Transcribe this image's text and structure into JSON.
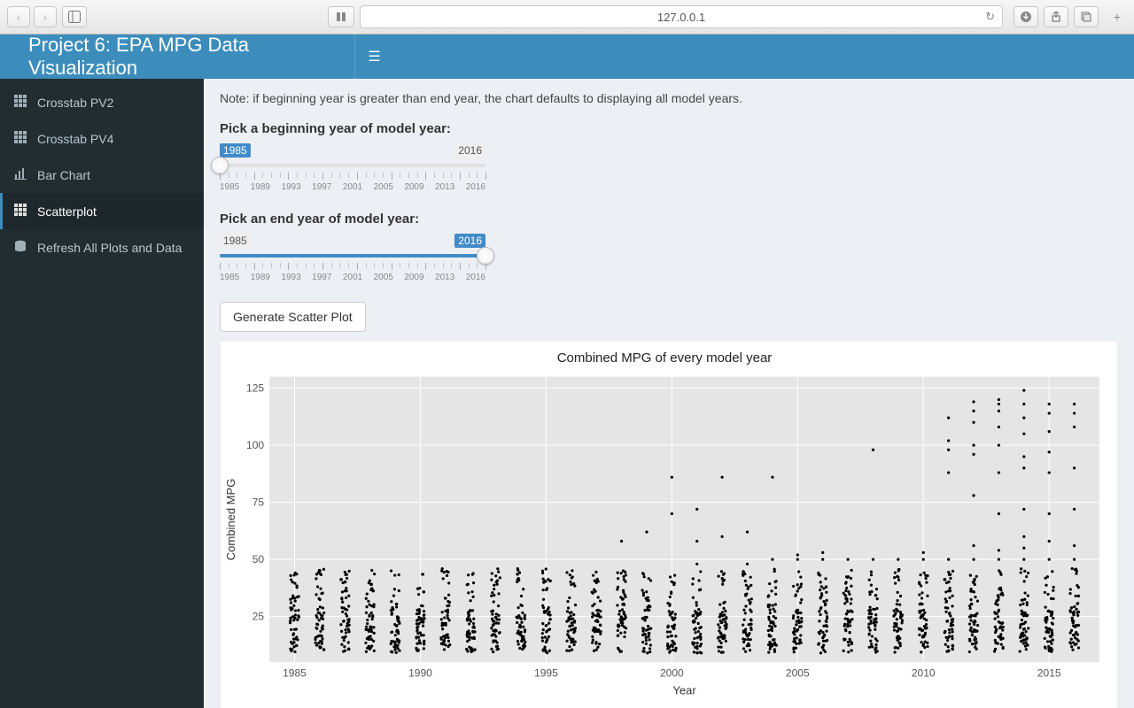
{
  "browser": {
    "url": "127.0.0.1"
  },
  "header": {
    "title": "Project 6: EPA MPG Data Visualization"
  },
  "sidebar": {
    "items": [
      {
        "label": "Crosstab PV2",
        "icon": "th"
      },
      {
        "label": "Crosstab PV4",
        "icon": "th"
      },
      {
        "label": "Bar Chart",
        "icon": "bar-chart"
      },
      {
        "label": "Scatterplot",
        "icon": "th",
        "active": true
      },
      {
        "label": "Refresh All Plots and Data",
        "icon": "database"
      }
    ]
  },
  "note": "Note: if beginning year is greater than end year, the chart defaults to displaying all model years.",
  "slider_begin": {
    "label": "Pick a beginning year of model year:",
    "min": 1985,
    "max": 2016,
    "value": 1985,
    "active_badge": "left",
    "tick_labels": [
      "1985",
      "1989",
      "1993",
      "1997",
      "2001",
      "2005",
      "2009",
      "2013",
      "2016"
    ]
  },
  "slider_end": {
    "label": "Pick an end year of model year:",
    "min": 1985,
    "max": 2016,
    "value": 2016,
    "active_badge": "right",
    "tick_labels": [
      "1985",
      "1989",
      "1993",
      "1997",
      "2001",
      "2005",
      "2009",
      "2013",
      "2016"
    ]
  },
  "generate_button": "Generate Scatter Plot",
  "chart": {
    "type": "scatter",
    "title": "Combined MPG of every model year",
    "xlabel": "Year",
    "ylabel": "Combined MPG",
    "xlim": [
      1984,
      2017
    ],
    "ylim": [
      5,
      130
    ],
    "x_ticks": [
      1985,
      1990,
      1995,
      2000,
      2005,
      2010,
      2015
    ],
    "y_ticks": [
      25,
      50,
      75,
      100,
      125
    ],
    "background_color": "#e5e5e5",
    "panel_line_color": "#ffffff",
    "point_color": "#000000",
    "point_radius": 1.6,
    "title_fontsize": 15,
    "label_fontsize": 13,
    "dense_columns": {
      "years": [
        1985,
        1986,
        1987,
        1988,
        1989,
        1990,
        1991,
        1992,
        1993,
        1994,
        1995,
        1996,
        1997,
        1998,
        1999,
        2000,
        2001,
        2002,
        2003,
        2004,
        2005,
        2006,
        2007,
        2008,
        2009,
        2010,
        2011,
        2012,
        2013,
        2014,
        2015,
        2016
      ],
      "y_min": 9,
      "y_max": 46,
      "count_per_year": 55
    },
    "outliers": [
      {
        "year": 1998,
        "mpg": 58
      },
      {
        "year": 1999,
        "mpg": 62
      },
      {
        "year": 2000,
        "mpg": 70
      },
      {
        "year": 2000,
        "mpg": 86
      },
      {
        "year": 2001,
        "mpg": 48
      },
      {
        "year": 2001,
        "mpg": 58
      },
      {
        "year": 2001,
        "mpg": 72
      },
      {
        "year": 2002,
        "mpg": 86
      },
      {
        "year": 2002,
        "mpg": 60
      },
      {
        "year": 2003,
        "mpg": 48
      },
      {
        "year": 2003,
        "mpg": 62
      },
      {
        "year": 2004,
        "mpg": 50
      },
      {
        "year": 2004,
        "mpg": 86
      },
      {
        "year": 2005,
        "mpg": 50
      },
      {
        "year": 2005,
        "mpg": 52
      },
      {
        "year": 2006,
        "mpg": 50
      },
      {
        "year": 2006,
        "mpg": 53
      },
      {
        "year": 2007,
        "mpg": 50
      },
      {
        "year": 2008,
        "mpg": 50
      },
      {
        "year": 2008,
        "mpg": 98
      },
      {
        "year": 2009,
        "mpg": 50
      },
      {
        "year": 2010,
        "mpg": 50
      },
      {
        "year": 2010,
        "mpg": 53
      },
      {
        "year": 2011,
        "mpg": 50
      },
      {
        "year": 2011,
        "mpg": 88
      },
      {
        "year": 2011,
        "mpg": 98
      },
      {
        "year": 2011,
        "mpg": 102
      },
      {
        "year": 2011,
        "mpg": 112
      },
      {
        "year": 2012,
        "mpg": 50
      },
      {
        "year": 2012,
        "mpg": 56
      },
      {
        "year": 2012,
        "mpg": 78
      },
      {
        "year": 2012,
        "mpg": 96
      },
      {
        "year": 2012,
        "mpg": 100
      },
      {
        "year": 2012,
        "mpg": 110
      },
      {
        "year": 2012,
        "mpg": 115
      },
      {
        "year": 2012,
        "mpg": 119
      },
      {
        "year": 2013,
        "mpg": 50
      },
      {
        "year": 2013,
        "mpg": 54
      },
      {
        "year": 2013,
        "mpg": 70
      },
      {
        "year": 2013,
        "mpg": 88
      },
      {
        "year": 2013,
        "mpg": 100
      },
      {
        "year": 2013,
        "mpg": 108
      },
      {
        "year": 2013,
        "mpg": 115
      },
      {
        "year": 2013,
        "mpg": 118
      },
      {
        "year": 2013,
        "mpg": 120
      },
      {
        "year": 2014,
        "mpg": 50
      },
      {
        "year": 2014,
        "mpg": 55
      },
      {
        "year": 2014,
        "mpg": 60
      },
      {
        "year": 2014,
        "mpg": 72
      },
      {
        "year": 2014,
        "mpg": 90
      },
      {
        "year": 2014,
        "mpg": 95
      },
      {
        "year": 2014,
        "mpg": 105
      },
      {
        "year": 2014,
        "mpg": 112
      },
      {
        "year": 2014,
        "mpg": 118
      },
      {
        "year": 2014,
        "mpg": 124
      },
      {
        "year": 2015,
        "mpg": 50
      },
      {
        "year": 2015,
        "mpg": 58
      },
      {
        "year": 2015,
        "mpg": 70
      },
      {
        "year": 2015,
        "mpg": 88
      },
      {
        "year": 2015,
        "mpg": 97
      },
      {
        "year": 2015,
        "mpg": 106
      },
      {
        "year": 2015,
        "mpg": 114
      },
      {
        "year": 2015,
        "mpg": 118
      },
      {
        "year": 2016,
        "mpg": 50
      },
      {
        "year": 2016,
        "mpg": 56
      },
      {
        "year": 2016,
        "mpg": 72
      },
      {
        "year": 2016,
        "mpg": 90
      },
      {
        "year": 2016,
        "mpg": 108
      },
      {
        "year": 2016,
        "mpg": 114
      },
      {
        "year": 2016,
        "mpg": 118
      }
    ]
  }
}
